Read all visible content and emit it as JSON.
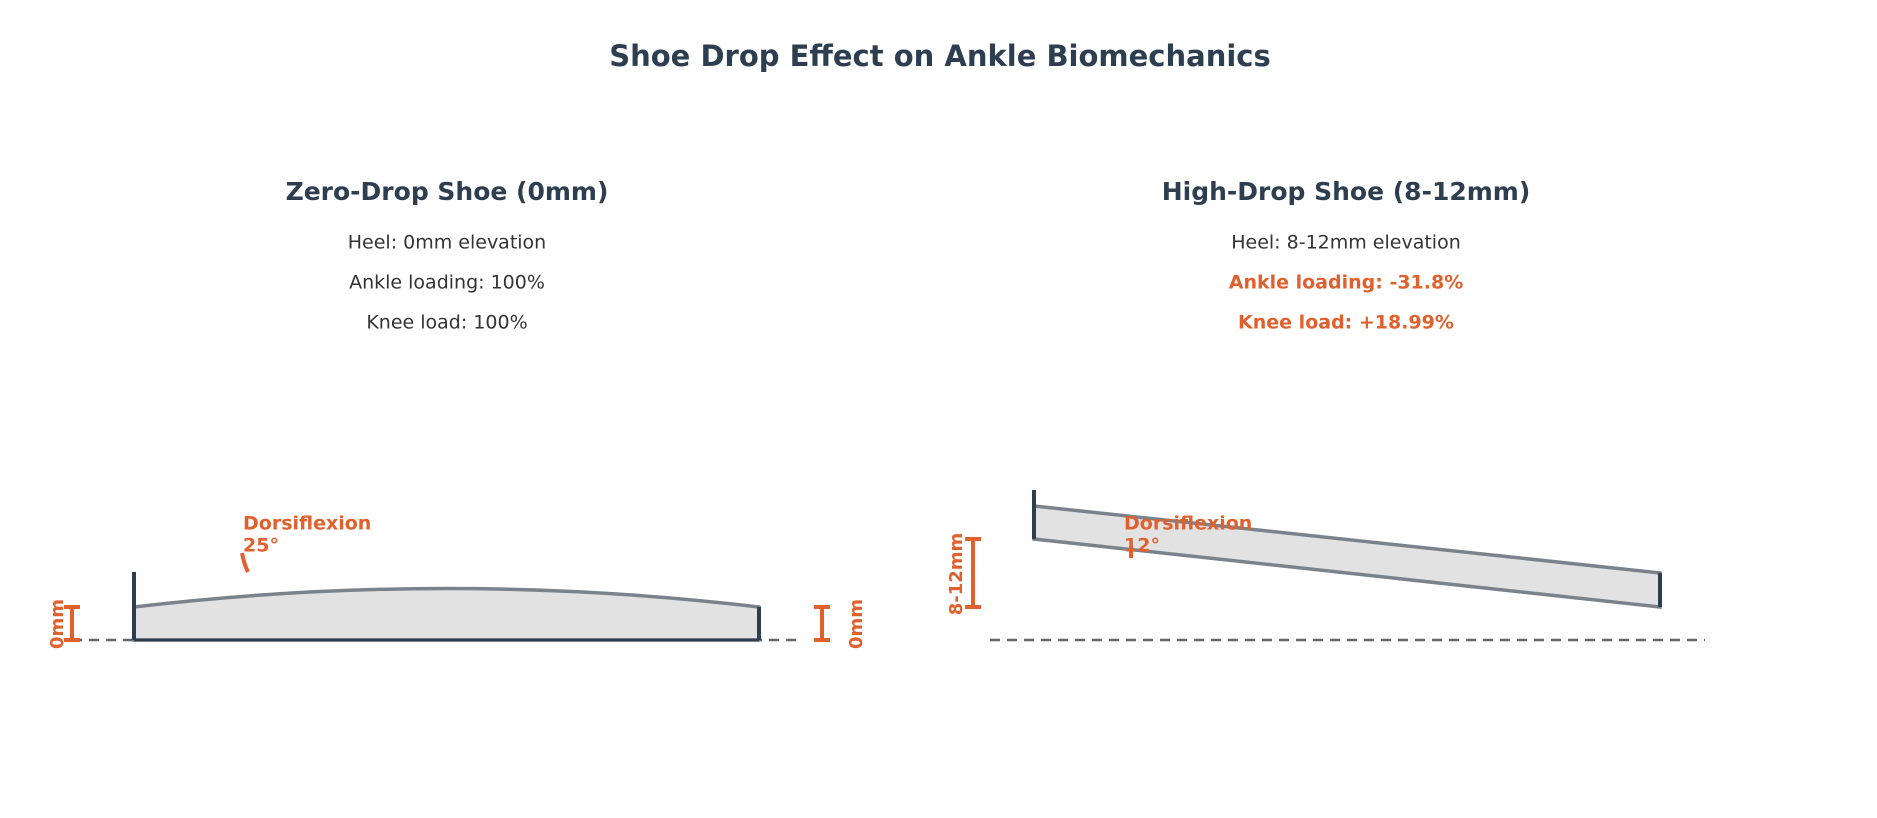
{
  "title": "Shoe Drop Effect on Ankle Biomechanics",
  "panels": [
    {
      "title": "Zero-Drop Shoe (0mm)",
      "lines": [
        "Heel: 0mm elevation",
        "Ankle loading: 100%",
        "Knee load: 100%"
      ],
      "dorsiflexion_label": "Dorsiflexion",
      "dorsiflexion_angle": "25°",
      "heel_height": "0mm",
      "toe_height": "0mm"
    },
    {
      "title": "High-Drop Shoe (8-12mm)",
      "lines": [
        "Heel: 8-12mm elevation",
        "Ankle loading: -31.8%",
        "Knee load: +18.99%"
      ],
      "dorsiflexion_label": "Dorsiflexion",
      "dorsiflexion_angle": "12°",
      "heel_height": "8-12mm"
    }
  ]
}
